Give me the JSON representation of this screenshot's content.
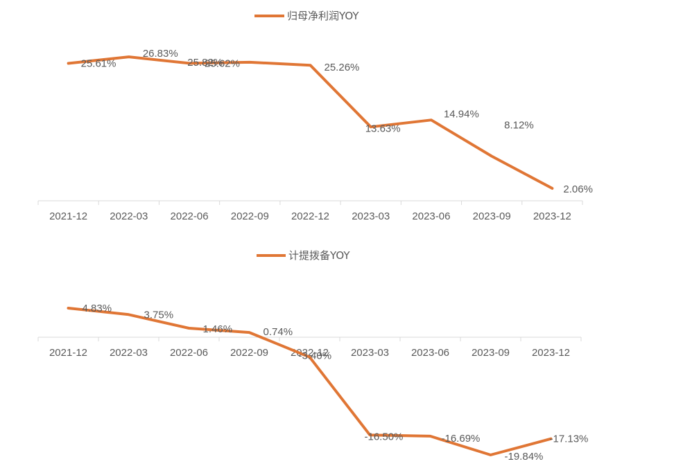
{
  "colors": {
    "series": "#e07635",
    "axis": "#d9d9d9",
    "text": "#595959"
  },
  "chart_data": [
    {
      "type": "line",
      "title": "",
      "categories": [
        "2021-12",
        "2022-03",
        "2022-06",
        "2022-09",
        "2022-12",
        "2023-03",
        "2023-06",
        "2023-09",
        "2023-12"
      ],
      "series": [
        {
          "name": "归母净利润YOY",
          "values": [
            25.61,
            26.83,
            25.62,
            25.82,
            25.26,
            13.63,
            14.94,
            8.12,
            2.06
          ],
          "labels": [
            "25.61%",
            "26.83%",
            "25.62%",
            "25.82%",
            "25.26%",
            "13.63%",
            "14.94%",
            "8.12%",
            "2.06%"
          ]
        }
      ],
      "xlabel": "",
      "ylabel": "",
      "ylim": [
        0,
        28
      ]
    },
    {
      "type": "line",
      "title": "",
      "categories": [
        "2021-12",
        "2022-03",
        "2022-06",
        "2022-09",
        "2022-12",
        "2023-03",
        "2023-06",
        "2023-09",
        "2023-12"
      ],
      "series": [
        {
          "name": "计提拨备YOY",
          "values": [
            4.83,
            3.75,
            1.46,
            0.74,
            -3.4,
            -16.5,
            -16.69,
            -19.84,
            -17.13
          ],
          "labels": [
            "4.83%",
            "3.75%",
            "1.46%",
            "0.74%",
            "-3.40%",
            "-16.50%",
            "-16.69%",
            "-19.84%",
            "-17.13%"
          ]
        }
      ],
      "xlabel": "",
      "ylabel": "",
      "ylim": [
        -20,
        5
      ]
    }
  ]
}
